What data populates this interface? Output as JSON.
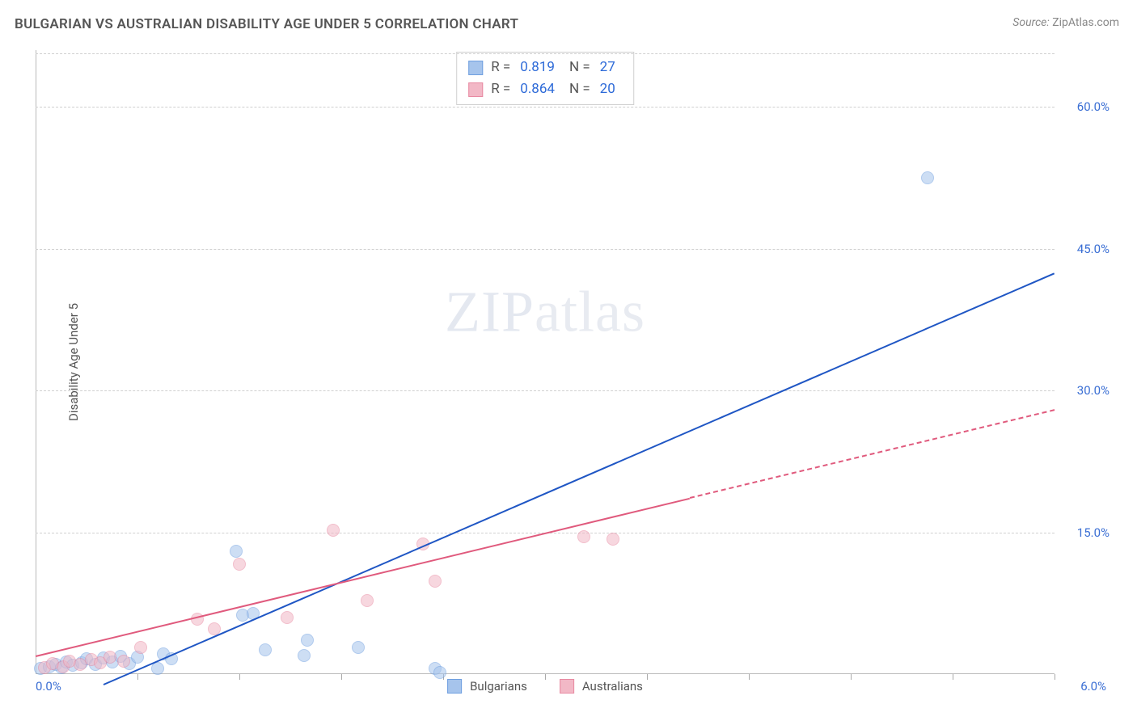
{
  "header": {
    "title": "BULGARIAN VS AUSTRALIAN DISABILITY AGE UNDER 5 CORRELATION CHART",
    "source_label": "Source:",
    "source_value": "ZipAtlas.com"
  },
  "chart": {
    "type": "scatter",
    "y_axis_label": "Disability Age Under 5",
    "x_origin_label": "0.0%",
    "x_end_label": "6.0%",
    "xlim": [
      0,
      6
    ],
    "ylim": [
      0,
      66
    ],
    "y_ticks": [
      {
        "value": 15,
        "label": "15.0%"
      },
      {
        "value": 30,
        "label": "30.0%"
      },
      {
        "value": 45,
        "label": "45.0%"
      },
      {
        "value": 60,
        "label": "60.0%"
      }
    ],
    "x_tick_values": [
      0.6,
      1.2,
      1.8,
      2.4,
      3.0,
      3.6,
      4.2,
      4.8,
      5.4,
      6.0
    ],
    "grid_color": "#d0d0d0",
    "background_color": "#ffffff",
    "axis_color": "#bbbbbb",
    "tick_color": "#aaaaaa",
    "label_color": "#3b6fd4",
    "marker_radius": 8,
    "watermark": {
      "strong": "ZIP",
      "light": "atlas"
    },
    "series": [
      {
        "name": "Bulgarians",
        "color_fill": "#a6c4ec",
        "color_stroke": "#6f9fe0",
        "fill_opacity": 0.55,
        "R": "0.819",
        "N": "27",
        "trend": {
          "color": "#1f56c4",
          "x1": 0.4,
          "y1": -1.0,
          "x2": 6.0,
          "y2": 42.5,
          "dashed_from_x": null
        },
        "points": [
          {
            "x": 0.03,
            "y": 0.6
          },
          {
            "x": 0.08,
            "y": 0.8
          },
          {
            "x": 0.12,
            "y": 1.0
          },
          {
            "x": 0.15,
            "y": 0.7
          },
          {
            "x": 0.18,
            "y": 1.3
          },
          {
            "x": 0.22,
            "y": 0.9
          },
          {
            "x": 0.27,
            "y": 1.2
          },
          {
            "x": 0.3,
            "y": 1.6
          },
          {
            "x": 0.35,
            "y": 1.0
          },
          {
            "x": 0.4,
            "y": 1.7
          },
          {
            "x": 0.45,
            "y": 1.3
          },
          {
            "x": 0.5,
            "y": 1.9
          },
          {
            "x": 0.55,
            "y": 1.1
          },
          {
            "x": 0.6,
            "y": 1.8
          },
          {
            "x": 0.72,
            "y": 0.6
          },
          {
            "x": 0.75,
            "y": 2.1
          },
          {
            "x": 0.8,
            "y": 1.6
          },
          {
            "x": 1.18,
            "y": 13.0
          },
          {
            "x": 1.22,
            "y": 6.2
          },
          {
            "x": 1.28,
            "y": 6.4
          },
          {
            "x": 1.35,
            "y": 2.6
          },
          {
            "x": 1.58,
            "y": 2.0
          },
          {
            "x": 1.6,
            "y": 3.6
          },
          {
            "x": 1.9,
            "y": 2.8
          },
          {
            "x": 2.35,
            "y": 0.6
          },
          {
            "x": 2.38,
            "y": 0.2
          },
          {
            "x": 5.25,
            "y": 52.5
          }
        ]
      },
      {
        "name": "Australians",
        "color_fill": "#f2b8c6",
        "color_stroke": "#e88aa2",
        "fill_opacity": 0.55,
        "R": "0.864",
        "N": "20",
        "trend": {
          "color": "#e05a7d",
          "x1": 0.0,
          "y1": 2.0,
          "x2": 6.0,
          "y2": 28.0,
          "dashed_from_x": 3.85
        },
        "points": [
          {
            "x": 0.05,
            "y": 0.7
          },
          {
            "x": 0.1,
            "y": 1.1
          },
          {
            "x": 0.16,
            "y": 0.8
          },
          {
            "x": 0.2,
            "y": 1.4
          },
          {
            "x": 0.26,
            "y": 1.0
          },
          {
            "x": 0.33,
            "y": 1.5
          },
          {
            "x": 0.38,
            "y": 1.2
          },
          {
            "x": 0.44,
            "y": 1.8
          },
          {
            "x": 0.52,
            "y": 1.4
          },
          {
            "x": 0.62,
            "y": 2.8
          },
          {
            "x": 0.95,
            "y": 5.8
          },
          {
            "x": 1.05,
            "y": 4.8
          },
          {
            "x": 1.2,
            "y": 11.6
          },
          {
            "x": 1.48,
            "y": 6.0
          },
          {
            "x": 1.75,
            "y": 15.2
          },
          {
            "x": 1.95,
            "y": 7.8
          },
          {
            "x": 2.28,
            "y": 13.8
          },
          {
            "x": 2.35,
            "y": 9.8
          },
          {
            "x": 3.4,
            "y": 14.3
          },
          {
            "x": 3.23,
            "y": 14.5
          }
        ]
      }
    ],
    "stats_legend": {
      "r_label": "R",
      "n_label": "N",
      "eq": "=",
      "value_color": "#2d6ad8",
      "text_color": "#555555",
      "border_color": "#cfcfcf"
    },
    "series_legend_text_color": "#555555"
  }
}
